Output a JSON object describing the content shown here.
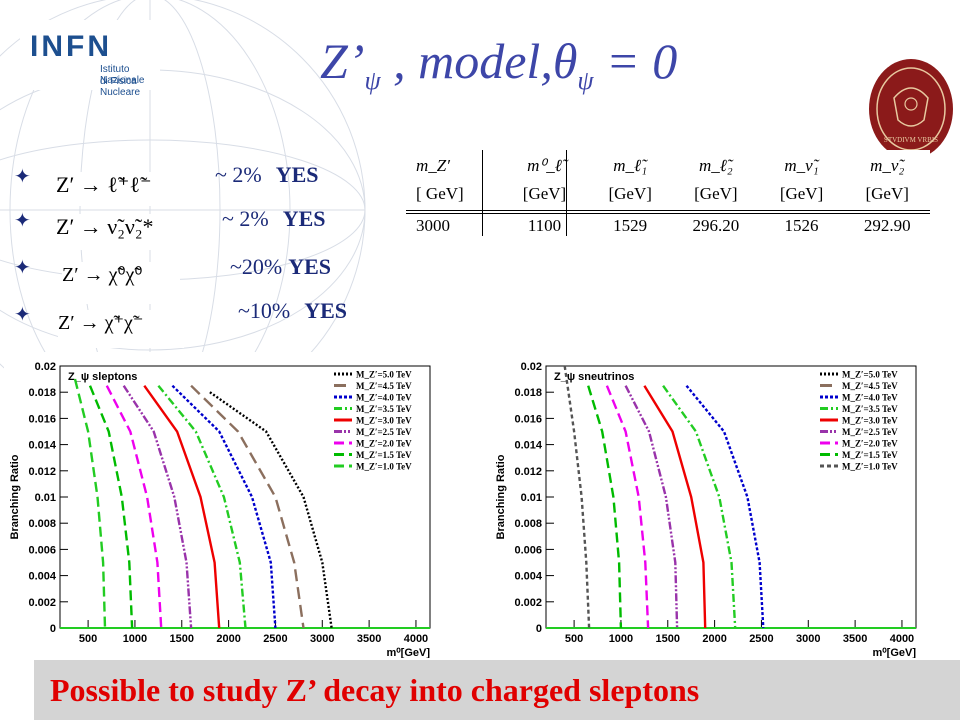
{
  "logos": {
    "infn": {
      "mark": "INFN",
      "line1": "Istituto Nazionale",
      "line2": "di Fisica Nucleare"
    },
    "seal": {
      "motto": "STVDIVM VRBIS",
      "color": "#8b1a1a"
    }
  },
  "title": {
    "main": "Z’",
    "sub1": "ψ",
    "mid": " ,   model,θ",
    "sub2": "ψ",
    "end": " = 0"
  },
  "decays": [
    {
      "process": "Z′ → ℓ̃⁺ℓ̃⁻",
      "percent": "~ 2%",
      "answer": "YES"
    },
    {
      "process": "Z′ → ν̃₂ν̃₂*",
      "percent": "~ 2%",
      "answer": "YES"
    },
    {
      "process": "Z′ → χ̃⁰χ̃⁰",
      "percent": "~20%",
      "answer": "YES"
    },
    {
      "process": "Z′ → χ̃⁺χ̃⁻",
      "percent": "~10%",
      "answer": "YES"
    }
  ],
  "mass_table": {
    "headers": [
      "m_Z′",
      "m⁰_ℓ̃",
      "m_ℓ̃₁",
      "m_ℓ̃₂",
      "m_ν̃₁",
      "m_ν̃₂"
    ],
    "units": [
      "[ GeV]",
      "[GeV]",
      "[GeV]",
      "[GeV]",
      "[GeV]",
      "[GeV]"
    ],
    "values": [
      "3000",
      "1100",
      "1529",
      "296.20",
      "1526",
      "292.90"
    ]
  },
  "chart_data": [
    {
      "type": "line",
      "title": "Z_ψ sleptons",
      "xlabel": "m⁰[GeV]",
      "ylabel": "Branching Ratio",
      "xlim": [
        200,
        4150
      ],
      "ylim": [
        0,
        0.02
      ],
      "xticks": [
        500,
        1000,
        1500,
        2000,
        2500,
        3000,
        3500,
        4000
      ],
      "yticks": [
        0,
        0.002,
        0.004,
        0.006,
        0.008,
        0.01,
        0.012,
        0.014,
        0.016,
        0.018,
        0.02
      ],
      "legend_position": "top-right",
      "series": [
        {
          "name": "M_Z′=5.0 TeV",
          "color": "#000000",
          "dash": "2,2",
          "x": [
            1800,
            2400,
            2800,
            3000,
            3100
          ],
          "y": [
            0.018,
            0.015,
            0.01,
            0.005,
            0.0
          ]
        },
        {
          "name": "M_Z′=4.5 TeV",
          "color": "#8b6f5e",
          "dash": "12,6",
          "x": [
            1600,
            2100,
            2500,
            2700,
            2800
          ],
          "y": [
            0.0185,
            0.015,
            0.01,
            0.005,
            0.0
          ]
        },
        {
          "name": "M_Z′=4.0 TeV",
          "color": "#0000cc",
          "dash": "3,2",
          "x": [
            1400,
            1900,
            2250,
            2450,
            2500
          ],
          "y": [
            0.0185,
            0.015,
            0.01,
            0.005,
            0.0
          ]
        },
        {
          "name": "M_Z′=3.5 TeV",
          "color": "#22cc22",
          "dash": "8,3,2,3",
          "x": [
            1250,
            1650,
            1950,
            2120,
            2180
          ],
          "y": [
            0.0185,
            0.015,
            0.01,
            0.005,
            0.0
          ]
        },
        {
          "name": "M_Z′=3.0 TeV",
          "color": "#ee0000",
          "dash": "",
          "x": [
            1100,
            1450,
            1700,
            1850,
            1900
          ],
          "y": [
            0.0185,
            0.015,
            0.01,
            0.005,
            0.0
          ]
        },
        {
          "name": "M_Z′=2.5 TeV",
          "color": "#9933aa",
          "dash": "8,2,2,2,2,2",
          "x": [
            880,
            1200,
            1420,
            1550,
            1600
          ],
          "y": [
            0.0185,
            0.015,
            0.01,
            0.005,
            0.0
          ]
        },
        {
          "name": "M_Z′=2.0 TeV",
          "color": "#ee00ee",
          "dash": "10,5",
          "x": [
            700,
            950,
            1130,
            1240,
            1280
          ],
          "y": [
            0.0185,
            0.015,
            0.01,
            0.005,
            0.0
          ]
        },
        {
          "name": "M_Z′=1.5 TeV",
          "color": "#00bb00",
          "dash": "10,5",
          "x": [
            520,
            720,
            860,
            940,
            970
          ],
          "y": [
            0.0185,
            0.015,
            0.01,
            0.005,
            0.0
          ]
        },
        {
          "name": "M_Z′=1.0 TeV",
          "color": "#22cc22",
          "dash": "10,5",
          "x": [
            360,
            500,
            600,
            660,
            680
          ],
          "y": [
            0.019,
            0.015,
            0.01,
            0.005,
            0.0
          ]
        }
      ]
    },
    {
      "type": "line",
      "title": "Z_ψ sneutrinos",
      "xlabel": "m⁰[GeV]",
      "ylabel": "Branching Ratio",
      "xlim": [
        200,
        4150
      ],
      "ylim": [
        0,
        0.02
      ],
      "xticks": [
        500,
        1000,
        1500,
        2000,
        2500,
        3000,
        3500,
        4000
      ],
      "yticks": [
        0,
        0.002,
        0.004,
        0.006,
        0.008,
        0.01,
        0.012,
        0.014,
        0.016,
        0.018,
        0.02
      ],
      "legend_position": "top-right",
      "series": [
        {
          "name": "M_Z′=5.0 TeV",
          "color": "#000000",
          "dash": "2,2",
          "x": [],
          "y": []
        },
        {
          "name": "M_Z′=4.5 TeV",
          "color": "#8b6f5e",
          "dash": "12,6",
          "x": [],
          "y": []
        },
        {
          "name": "M_Z′=4.0 TeV",
          "color": "#0000cc",
          "dash": "3,2",
          "x": [
            1700,
            2100,
            2350,
            2480,
            2520
          ],
          "y": [
            0.0185,
            0.015,
            0.01,
            0.005,
            0.0
          ]
        },
        {
          "name": "M_Z′=3.5 TeV",
          "color": "#22cc22",
          "dash": "8,3,2,3",
          "x": [
            1450,
            1800,
            2050,
            2180,
            2220
          ],
          "y": [
            0.0185,
            0.015,
            0.01,
            0.005,
            0.0
          ]
        },
        {
          "name": "M_Z′=3.0 TeV",
          "color": "#ee0000",
          "dash": "",
          "x": [
            1250,
            1550,
            1750,
            1880,
            1900
          ],
          "y": [
            0.0185,
            0.015,
            0.01,
            0.005,
            0.0
          ]
        },
        {
          "name": "M_Z′=2.5 TeV",
          "color": "#9933aa",
          "dash": "8,2,2,2,2,2",
          "x": [
            1050,
            1300,
            1480,
            1580,
            1600
          ],
          "y": [
            0.0185,
            0.015,
            0.01,
            0.005,
            0.0
          ]
        },
        {
          "name": "M_Z′=2.0 TeV",
          "color": "#ee00ee",
          "dash": "10,5",
          "x": [
            850,
            1050,
            1190,
            1260,
            1290
          ],
          "y": [
            0.0185,
            0.015,
            0.01,
            0.005,
            0.0
          ]
        },
        {
          "name": "M_Z′=1.5 TeV",
          "color": "#00bb00",
          "dash": "10,5",
          "x": [
            650,
            800,
            920,
            980,
            1000
          ],
          "y": [
            0.0185,
            0.015,
            0.01,
            0.005,
            0.0
          ]
        },
        {
          "name": "M_Z′=1.0 TeV",
          "color": "#555555",
          "dash": "4,3",
          "x": [
            400,
            500,
            580,
            630,
            660
          ],
          "y": [
            0.02,
            0.015,
            0.01,
            0.005,
            0.0
          ]
        }
      ]
    }
  ],
  "footer": {
    "text": "Possible to study Z’ decay into charged  sleptons",
    "color": "#e00000"
  }
}
